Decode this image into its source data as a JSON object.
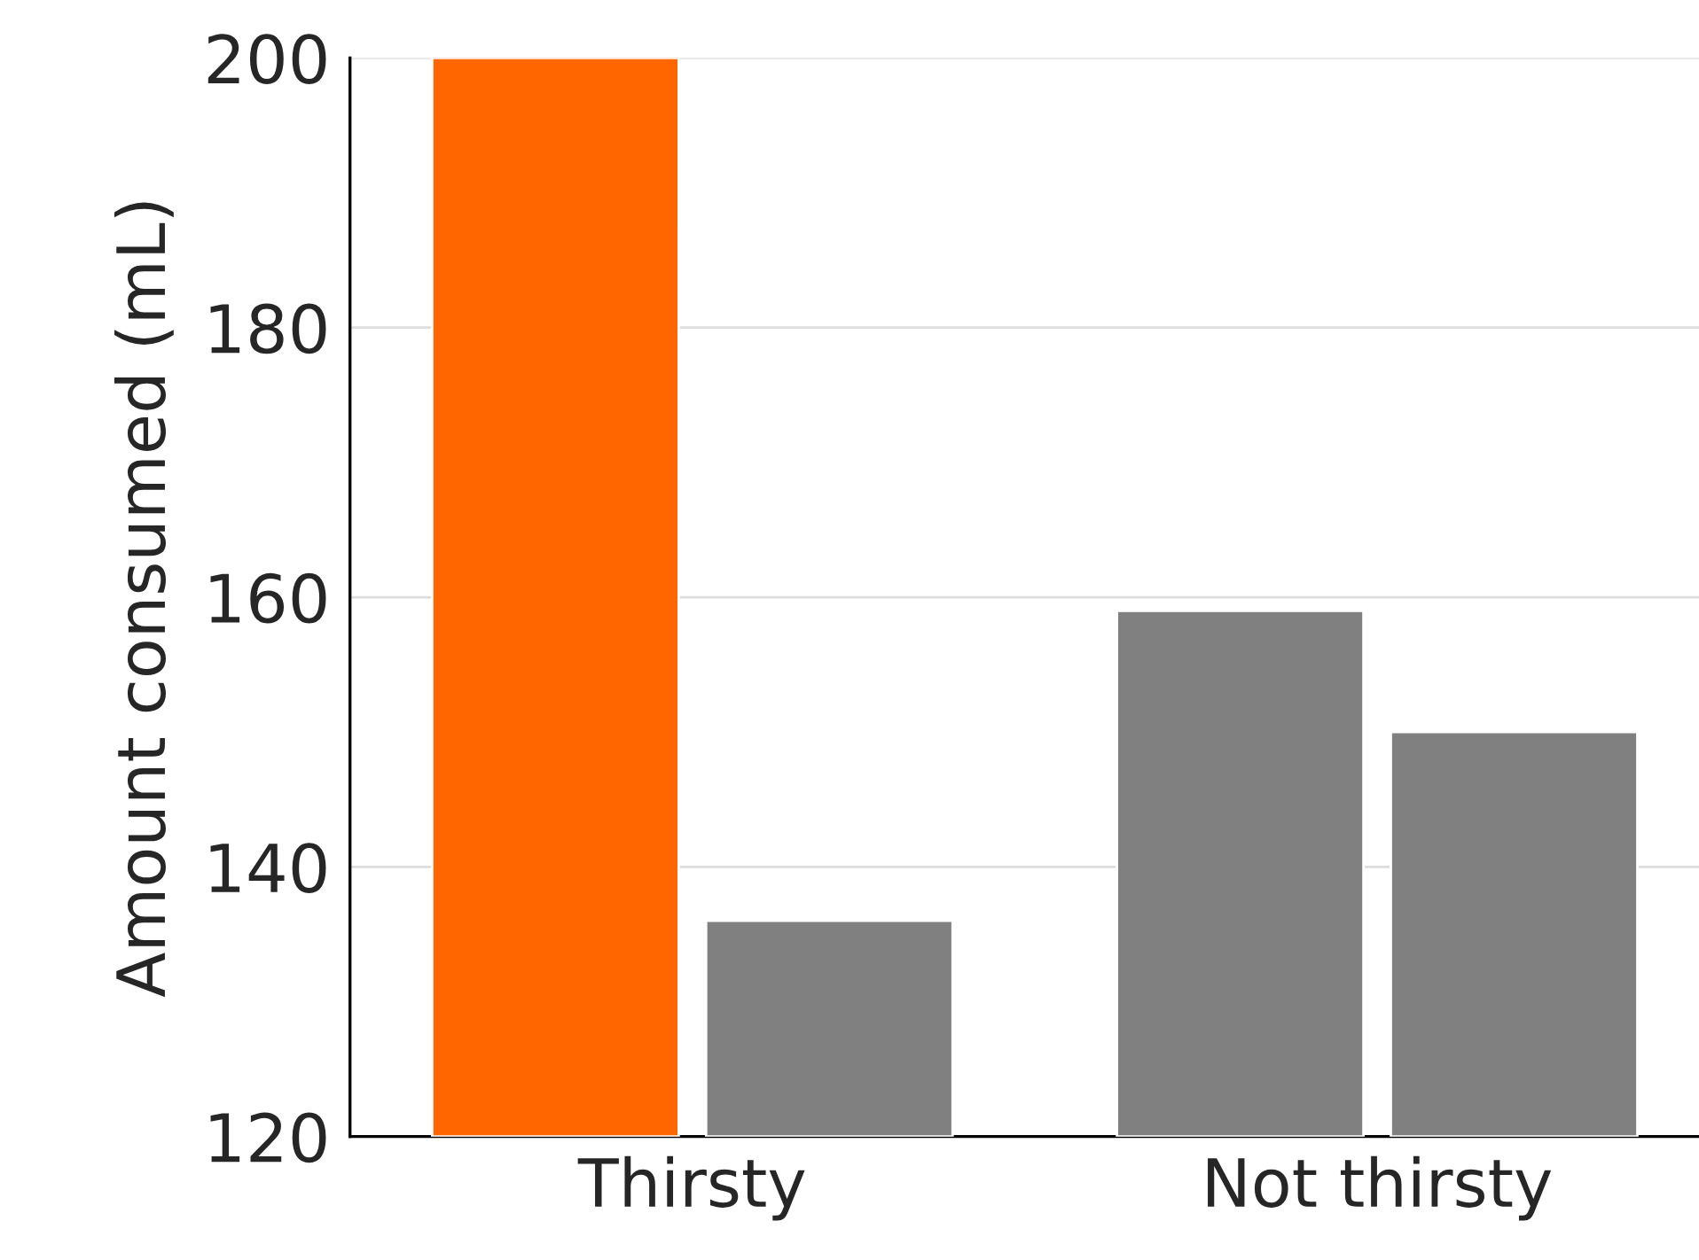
{
  "chart_data": {
    "type": "bar",
    "ylabel": "Amount consumed (mL)",
    "categories": [
      "Thirsty",
      "Not thirsty"
    ],
    "series": [
      {
        "values": [
          200,
          159
        ],
        "colors": [
          "#ff6600",
          "#808080"
        ]
      },
      {
        "values": [
          136,
          150
        ],
        "color": "#808080"
      }
    ],
    "ylim": [
      120,
      200
    ],
    "yticks": [
      120,
      140,
      160,
      180,
      200
    ],
    "grid": "y",
    "legend": false
  }
}
